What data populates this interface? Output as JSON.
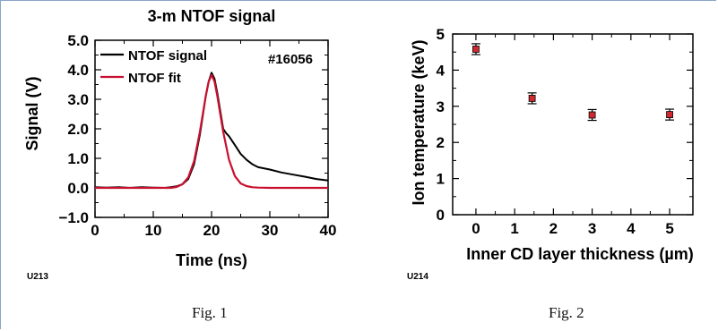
{
  "figures": [
    {
      "caption": "Fig. 1",
      "code": "U213",
      "chart_data": {
        "type": "line",
        "title": "3-m NTOF signal",
        "xlabel": "Time (ns)",
        "ylabel": "Signal (V)",
        "xlim": [
          0,
          40
        ],
        "ylim": [
          -1.0,
          5.0
        ],
        "x_ticks": [
          "0",
          "10",
          "20",
          "30",
          "40"
        ],
        "y_ticks": [
          "−1.0",
          "0.0",
          "1.0",
          "2.0",
          "3.0",
          "4.0",
          "5.0"
        ],
        "shot_label": "#16056",
        "legend_position": "top-left",
        "series": [
          {
            "name": "NTOF signal",
            "color": "#000000",
            "x": [
              0,
              2,
              4,
              6,
              8,
              10,
              12,
              13,
              14,
              15,
              16,
              17,
              18,
              19,
              19.5,
              20,
              20.5,
              21,
              22,
              22.5,
              23,
              24,
              25,
              26,
              27,
              28,
              30,
              32,
              34,
              36,
              38,
              40
            ],
            "y": [
              0.02,
              0.01,
              0.02,
              0.0,
              0.02,
              0.01,
              0.0,
              0.02,
              0.05,
              0.12,
              0.3,
              0.8,
              1.8,
              3.1,
              3.6,
              3.9,
              3.7,
              3.2,
              2.0,
              1.85,
              1.75,
              1.45,
              1.15,
              0.95,
              0.8,
              0.7,
              0.62,
              0.52,
              0.45,
              0.38,
              0.3,
              0.25
            ]
          },
          {
            "name": "NTOF fit",
            "color": "#c8102e",
            "x": [
              0,
              10,
              13,
              14,
              15,
              16,
              17,
              18,
              19,
              19.5,
              20,
              20.5,
              21,
              22,
              23,
              24,
              25,
              26,
              27,
              28,
              30,
              35,
              40
            ],
            "y": [
              0.0,
              0.0,
              0.0,
              0.03,
              0.12,
              0.35,
              0.9,
              1.9,
              3.1,
              3.6,
              3.82,
              3.6,
              3.1,
              1.9,
              0.95,
              0.4,
              0.15,
              0.06,
              0.02,
              0.01,
              0.0,
              0.0,
              0.0
            ]
          }
        ]
      }
    },
    {
      "caption": "Fig. 2",
      "code": "U214",
      "chart_data": {
        "type": "scatter",
        "title": "",
        "xlabel": "Inner CD layer thickness (µm)",
        "ylabel": "Ion temperature (keV)",
        "xlim": [
          -0.6,
          5.6
        ],
        "ylim": [
          0,
          5
        ],
        "x_ticks": [
          "0",
          "1",
          "2",
          "3",
          "4",
          "5"
        ],
        "y_ticks": [
          "0",
          "1",
          "2",
          "3",
          "4",
          "5"
        ],
        "marker_color": "#d0282e",
        "series": [
          {
            "name": "",
            "x": [
              0,
              1.45,
              3,
              5
            ],
            "y": [
              4.58,
              3.22,
              2.76,
              2.77
            ],
            "error": [
              0.15,
              0.15,
              0.15,
              0.15
            ]
          }
        ]
      }
    }
  ]
}
